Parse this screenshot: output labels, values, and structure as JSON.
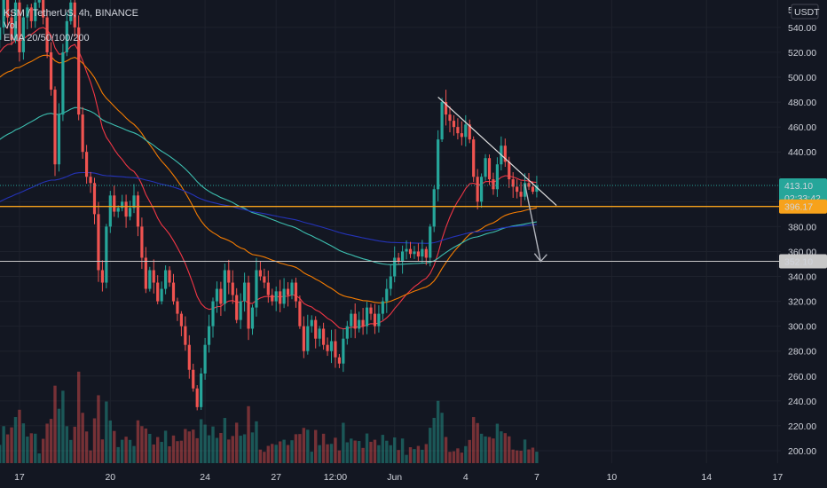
{
  "header": {
    "symbol_line": "KSM / TetherUS, 4h, BINANCE",
    "volume_label": "Vol",
    "ema_label": "EMA 20/50/100/200",
    "currency": "USDT"
  },
  "price_tags": {
    "current_price": "413.10",
    "countdown": "02:33:42",
    "support_line_price": "396.17",
    "target_line_price": "352.10"
  },
  "colors": {
    "background": "#131722",
    "up": "#26a69a",
    "down": "#ef5350",
    "ema20": "#f23645",
    "ema50": "#f57c00",
    "ema100": "#3dbfb0",
    "ema200": "#2433b8",
    "orange_line": "#f7a21b",
    "target_line": "#c8c8c8"
  },
  "chart_data": {
    "type": "candlestick",
    "title": "KSM / TetherUS, 4h, BINANCE",
    "y_unit": "USDT",
    "ylim": [
      190,
      562
    ],
    "y_ticks": [
      200,
      220,
      240,
      260,
      280,
      300,
      320,
      340,
      360,
      380,
      400,
      420,
      440,
      460,
      480,
      500,
      520,
      540
    ],
    "y_tick_labels": [
      "200.00",
      "220.00",
      "240.00",
      "260.00",
      "280.00",
      "300.00",
      "320.00",
      "340.00",
      "360.00",
      "380.00",
      "",
      "",
      "440.00",
      "460.00",
      "480.00",
      "500.00",
      "520.00",
      "540.00"
    ],
    "top_partial_tick": "5",
    "x_ticks": [
      {
        "bar": 5,
        "label": "17"
      },
      {
        "bar": 28,
        "label": "20"
      },
      {
        "bar": 52,
        "label": "24"
      },
      {
        "bar": 70,
        "label": "27"
      },
      {
        "bar": 85,
        "label": "12:00"
      },
      {
        "bar": 100,
        "label": "Jun"
      },
      {
        "bar": 118,
        "label": "4"
      },
      {
        "bar": 136,
        "label": "7"
      },
      {
        "bar": 155,
        "label": "10"
      },
      {
        "bar": 179,
        "label": "14"
      },
      {
        "bar": 197,
        "label": "17"
      }
    ],
    "closes": [
      540,
      562,
      548,
      530,
      560,
      520,
      548,
      556,
      545,
      560,
      562,
      548,
      520,
      490,
      430,
      470,
      520,
      545,
      560,
      540,
      470,
      440,
      420,
      415,
      390,
      345,
      335,
      380,
      405,
      392,
      395,
      400,
      388,
      395,
      405,
      380,
      355,
      330,
      345,
      335,
      320,
      330,
      345,
      335,
      320,
      310,
      300,
      285,
      265,
      250,
      235,
      262,
      285,
      300,
      320,
      330,
      318,
      345,
      335,
      325,
      305,
      320,
      335,
      298,
      315,
      345,
      340,
      335,
      325,
      320,
      328,
      318,
      330,
      325,
      335,
      320,
      300,
      280,
      300,
      305,
      290,
      298,
      285,
      280,
      288,
      275,
      270,
      290,
      300,
      310,
      298,
      305,
      300,
      315,
      310,
      300,
      310,
      320,
      330,
      340,
      355,
      352,
      360,
      362,
      358,
      360,
      356,
      362,
      355,
      380,
      410,
      450,
      480,
      470,
      465,
      460,
      455,
      452,
      462,
      450,
      420,
      400,
      420,
      435,
      418,
      410,
      430,
      445,
      432,
      418,
      412,
      408,
      404,
      415,
      412,
      408,
      413
    ],
    "h_lines": [
      {
        "price": 396.17,
        "label": "396.17"
      },
      {
        "price": 352.1,
        "label": "352.10"
      },
      {
        "price": 413.1,
        "label": "413.10"
      }
    ],
    "trendline": {
      "from": {
        "bar": 111,
        "price": 484
      },
      "to": {
        "bar": 141,
        "price": 397
      }
    },
    "projection_arrow": {
      "from": {
        "bar": 133,
        "price": 414
      },
      "to": {
        "bar": 137,
        "price": 352
      }
    },
    "indicators": [
      "EMA 20",
      "EMA 50",
      "EMA 100",
      "EMA 200",
      "Volume"
    ]
  }
}
